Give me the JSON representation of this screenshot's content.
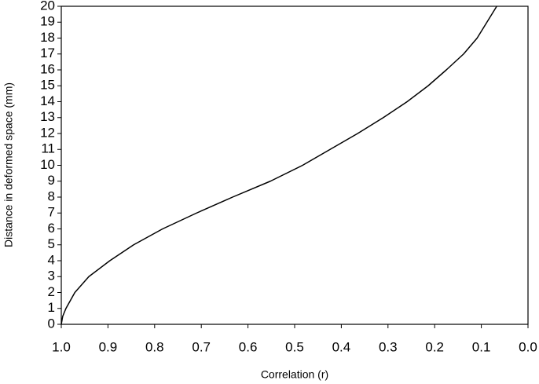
{
  "chart_data": {
    "type": "line",
    "xlabel": "Correlation (r)",
    "ylabel": "Distance in deformed space (mm)",
    "x": [
      1.0,
      0.997,
      0.99,
      0.971,
      0.941,
      0.896,
      0.845,
      0.783,
      0.71,
      0.633,
      0.552,
      0.483,
      0.424,
      0.365,
      0.31,
      0.259,
      0.214,
      0.175,
      0.138,
      0.109,
      0.088,
      0.067
    ],
    "series": [
      {
        "color": "#000000",
        "values": [
          0,
          0.5,
          1,
          2,
          3,
          4,
          5,
          6,
          7,
          8,
          9,
          10,
          11,
          12,
          13,
          14,
          15,
          16,
          17,
          18,
          19,
          20
        ]
      }
    ],
    "xlim": [
      1.0,
      0.0
    ],
    "xticks": [
      {
        "value": 1.0,
        "label": "1.0"
      },
      0.9,
      0.8,
      0.7,
      0.6,
      0.5,
      0.4,
      0.3,
      0.2,
      0.1,
      {
        "value": 0.0,
        "label": "0.0"
      }
    ],
    "ylim": [
      0,
      20
    ],
    "yticks": [
      0,
      1,
      2,
      3,
      4,
      5,
      6,
      7,
      8,
      9,
      10,
      11,
      12,
      13,
      14,
      15,
      16,
      17,
      18,
      19,
      20
    ]
  }
}
